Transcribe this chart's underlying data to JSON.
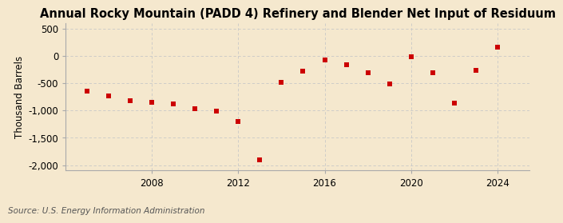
{
  "title": "Annual Rocky Mountain (PADD 4) Refinery and Blender Net Input of Residuum",
  "ylabel": "Thousand Barrels",
  "source": "Source: U.S. Energy Information Administration",
  "years": [
    2005,
    2006,
    2007,
    2008,
    2009,
    2010,
    2011,
    2012,
    2013,
    2014,
    2015,
    2016,
    2017,
    2018,
    2019,
    2020,
    2021,
    2022,
    2023,
    2024
  ],
  "values": [
    -650,
    -730,
    -820,
    -850,
    -880,
    -970,
    -1010,
    -1200,
    -1900,
    -480,
    -280,
    -80,
    -160,
    -310,
    -520,
    -20,
    -310,
    -870,
    -270,
    150
  ],
  "marker_color": "#cc0000",
  "marker_size": 5,
  "bg_color": "#f5e8ce",
  "grid_color": "#c8c8c8",
  "ylim": [
    -2100,
    600
  ],
  "yticks": [
    -2000,
    -1500,
    -1000,
    -500,
    0,
    500
  ],
  "xlim": [
    2004,
    2025.5
  ],
  "xticks": [
    2008,
    2012,
    2016,
    2020,
    2024
  ],
  "title_fontsize": 10.5,
  "axis_fontsize": 8.5,
  "source_fontsize": 7.5
}
